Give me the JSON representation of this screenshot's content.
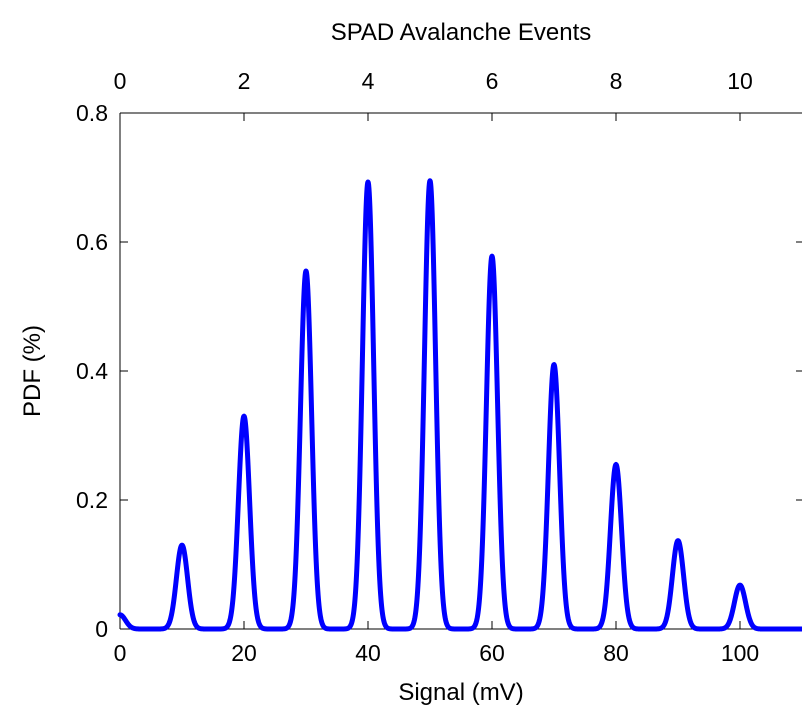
{
  "chart_data": {
    "type": "line",
    "title": "",
    "xlabel": "Signal (mV)",
    "ylabel": "PDF (%)",
    "x2label": "SPAD Avalanche Events",
    "xlim": [
      0,
      110
    ],
    "ylim": [
      0,
      0.8
    ],
    "x2lim": [
      0,
      11
    ],
    "xticks": [
      "0",
      "20",
      "40",
      "60",
      "80",
      "100"
    ],
    "yticks": [
      "0",
      "0.2",
      "0.4",
      "0.6",
      "0.8"
    ],
    "x2ticks": [
      "0",
      "2",
      "4",
      "6",
      "8",
      "10"
    ],
    "grid": false,
    "legend": "none",
    "series": [
      {
        "color": "#0000ff",
        "peak_width_mV": 0.9,
        "peaks": [
          {
            "x": 0,
            "y": 0.022
          },
          {
            "x": 10,
            "y": 0.13
          },
          {
            "x": 20,
            "y": 0.33
          },
          {
            "x": 30,
            "y": 0.555
          },
          {
            "x": 40,
            "y": 0.693
          },
          {
            "x": 50,
            "y": 0.695
          },
          {
            "x": 60,
            "y": 0.578
          },
          {
            "x": 70,
            "y": 0.41
          },
          {
            "x": 80,
            "y": 0.255
          },
          {
            "x": 90,
            "y": 0.137
          },
          {
            "x": 100,
            "y": 0.068
          }
        ]
      }
    ]
  }
}
